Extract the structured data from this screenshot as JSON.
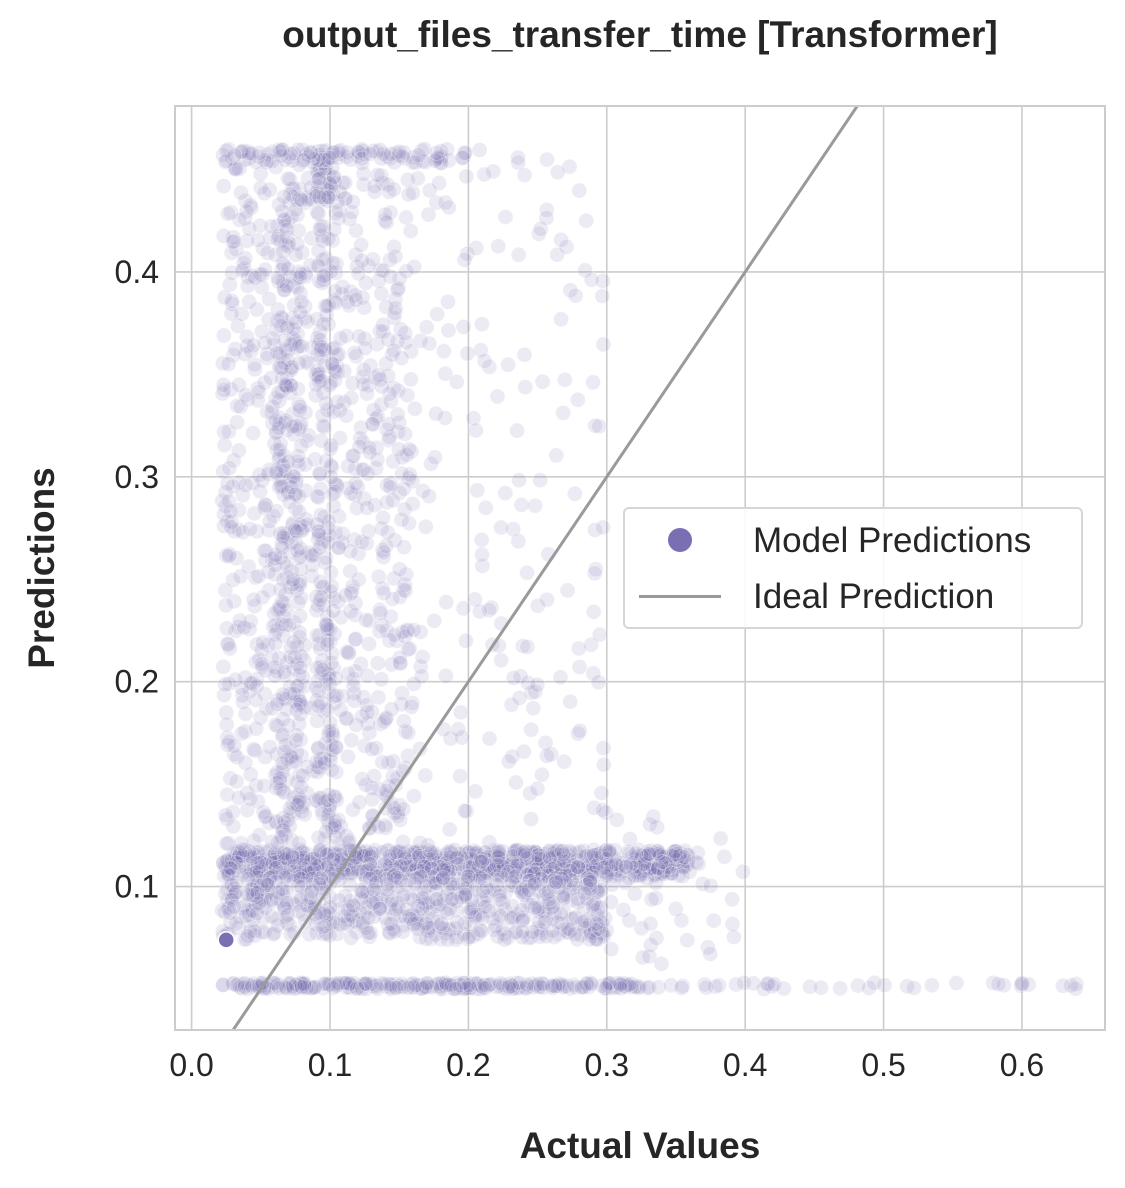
{
  "chart_data": {
    "type": "scatter",
    "title": "output_files_transfer_time [Transformer]",
    "xlabel": "Actual Values",
    "ylabel": "Predictions",
    "xlim": [
      -0.012,
      0.66
    ],
    "ylim": [
      0.03,
      0.481
    ],
    "xticks": [
      "0.0",
      "0.1",
      "0.2",
      "0.3",
      "0.4",
      "0.5",
      "0.6"
    ],
    "yticks": [
      "0.1",
      "0.2",
      "0.3",
      "0.4"
    ],
    "grid": true,
    "legend_position": "center-right",
    "colors": {
      "points": "#7b6fb3",
      "ideal_line": "#9a9a9a",
      "grid": "#cccccc"
    },
    "series": [
      {
        "name": "Model Predictions",
        "kind": "points",
        "point_opacity": 0.14,
        "clusters": [
          {
            "x": [
              0.022,
              0.36
            ],
            "y": [
              0.105,
              0.118
            ],
            "n": 900
          },
          {
            "x": [
              0.022,
              0.3
            ],
            "y": [
              0.074,
              0.105
            ],
            "n": 550
          },
          {
            "x": [
              0.022,
              0.33
            ],
            "y": [
              0.05,
              0.053
            ],
            "n": 260
          },
          {
            "x": [
              0.33,
              0.64
            ],
            "y": [
              0.05,
              0.053
            ],
            "n": 40
          },
          {
            "x": [
              0.022,
              0.16
            ],
            "y": [
              0.12,
              0.46
            ],
            "n": 850
          },
          {
            "x": [
              0.16,
              0.3
            ],
            "y": [
              0.12,
              0.46
            ],
            "n": 180
          },
          {
            "x": [
              0.06,
              0.08
            ],
            "y": [
              0.12,
              0.44
            ],
            "n": 200
          },
          {
            "x": [
              0.09,
              0.105
            ],
            "y": [
              0.12,
              0.46
            ],
            "n": 160
          },
          {
            "x": [
              0.02,
              0.2
            ],
            "y": [
              0.453,
              0.46
            ],
            "n": 90
          },
          {
            "x": [
              0.3,
              0.4
            ],
            "y": [
              0.06,
              0.135
            ],
            "n": 45
          }
        ],
        "highlight": {
          "x": 0.025,
          "y": 0.074
        }
      },
      {
        "name": "Ideal Prediction",
        "kind": "line",
        "x": [
          0.0,
          0.7
        ],
        "y": [
          0.0,
          0.7
        ]
      }
    ]
  },
  "legend": {
    "items": [
      {
        "label": "Model Predictions"
      },
      {
        "label": "Ideal Prediction"
      }
    ]
  }
}
